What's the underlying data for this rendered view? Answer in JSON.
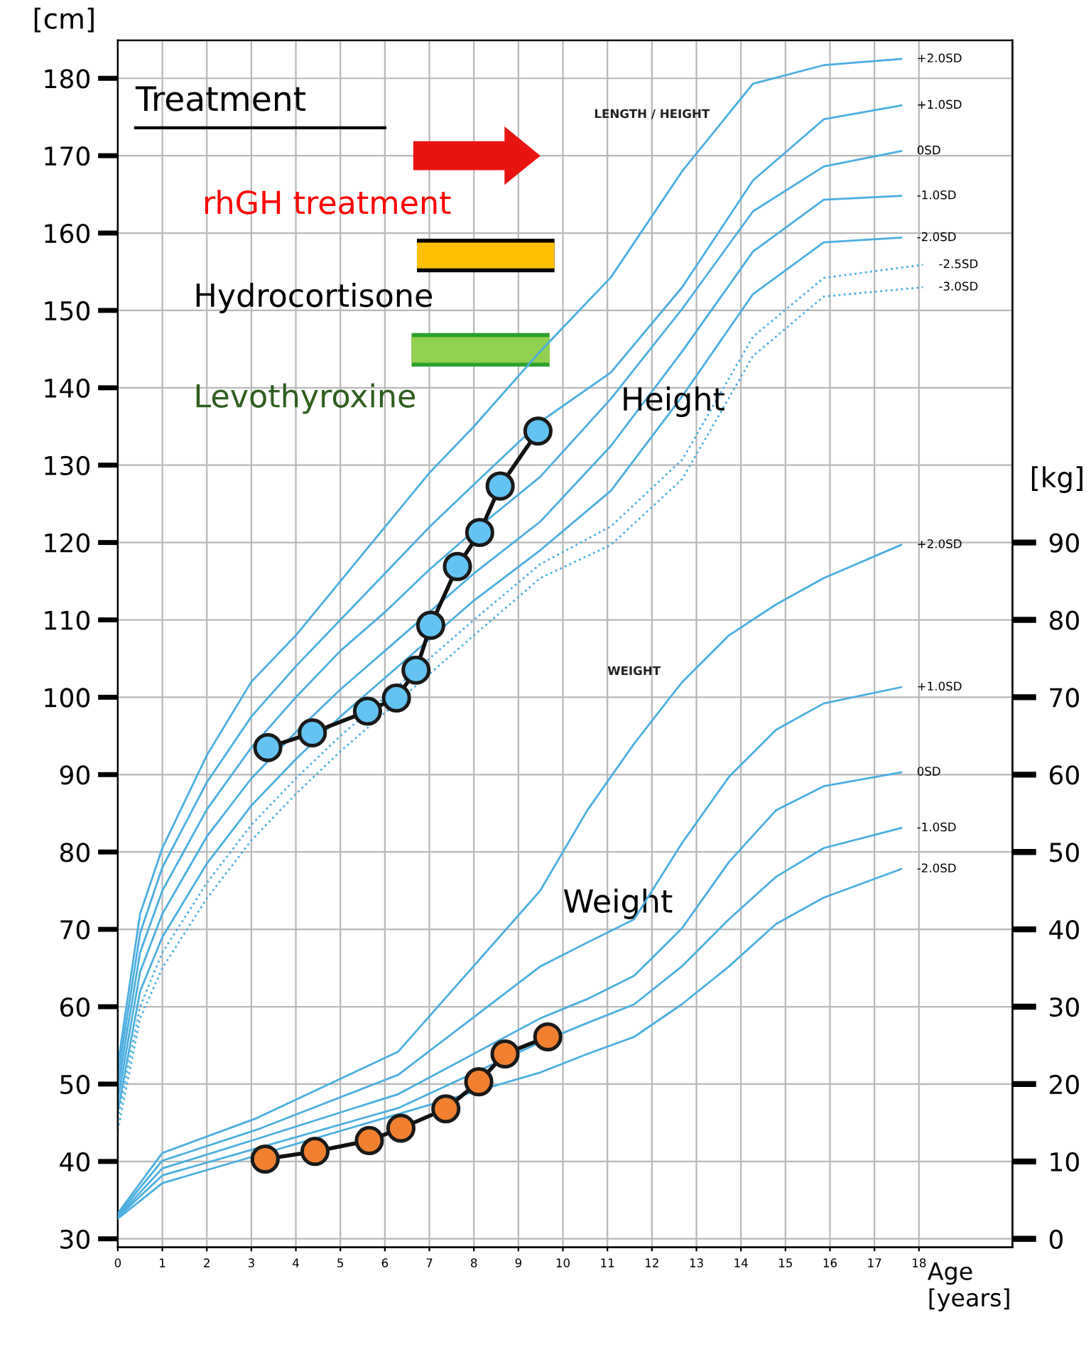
{
  "chart_data": {
    "type": "line",
    "xlabel": "Age\n[years]",
    "ylabel": "[cm]",
    "y2label": "[kg]",
    "xlim": [
      0,
      20.1
    ],
    "xticks": [
      0,
      1,
      2,
      3,
      4,
      5,
      6,
      7,
      8,
      9,
      10,
      11,
      12,
      13,
      14,
      15,
      16,
      17,
      18
    ],
    "ylim": [
      28.9,
      184.9
    ],
    "yticks": [
      30,
      40,
      50,
      60,
      70,
      80,
      90,
      100,
      110,
      120,
      130,
      140,
      150,
      160,
      170,
      180
    ],
    "y2lim": [
      -1.1,
      154.9
    ],
    "y2ticks": [
      0,
      10,
      20,
      30,
      40,
      50,
      60,
      70,
      80,
      90
    ],
    "grid": true,
    "legend": false,
    "annotations": [
      "Treatment",
      "rhGH treatment",
      "LENGTH / HEIGHT",
      "WEIGHT",
      "Height",
      "Weight"
    ],
    "series": [
      {
        "name": "+2.0SD",
        "color": "#4aaee0",
        "line_style": "solid",
        "marker": "none",
        "x": [
          0,
          0.5,
          1,
          2,
          3,
          4,
          5,
          6,
          7,
          8,
          9.49,
          11.08,
          12.68,
          14.27,
          15.86,
          17.6
        ],
        "values": [
          52.5,
          72,
          80.5,
          92.5,
          102,
          108,
          115,
          122,
          129,
          135,
          144.7,
          154.3,
          168,
          179.3,
          181.7,
          182.5
        ]
      },
      {
        "name": "+1.0SD",
        "color": "#4aaee0",
        "line_style": "solid",
        "marker": "none",
        "x": [
          0,
          0.5,
          1,
          2,
          3,
          4,
          5,
          6,
          7,
          8,
          9.49,
          11.08,
          12.68,
          14.27,
          15.86,
          17.6
        ],
        "values": [
          51,
          69.5,
          78,
          89,
          97.5,
          104,
          110,
          116,
          122,
          127.5,
          135.6,
          142,
          153,
          166.8,
          174.7,
          176.5
        ]
      },
      {
        "name": "0SD",
        "color": "#4aaee0",
        "line_style": "solid",
        "marker": "none",
        "x": [
          0,
          0.5,
          1,
          2,
          3,
          4,
          5,
          6,
          7,
          8,
          9.49,
          11.08,
          12.68,
          14.27,
          15.86,
          17.6
        ],
        "values": [
          49.5,
          67,
          75,
          85.5,
          93.5,
          100,
          106,
          111,
          116.5,
          121.5,
          128.5,
          138.6,
          150.2,
          162.8,
          168.6,
          170.6
        ]
      },
      {
        "name": "-1.0SD",
        "color": "#4aaee0",
        "line_style": "solid",
        "marker": "none",
        "x": [
          0,
          0.5,
          1,
          2,
          3,
          4,
          5,
          6,
          7,
          8,
          9.49,
          11.08,
          12.68,
          14.27,
          15.86,
          17.6
        ],
        "values": [
          48,
          64.5,
          72,
          82,
          89.5,
          95.5,
          101,
          106,
          111,
          116,
          122.7,
          132.5,
          144.7,
          157.6,
          164.3,
          164.8
        ]
      },
      {
        "name": "-2.0SD",
        "color": "#4aaee0",
        "line_style": "solid",
        "marker": "none",
        "x": [
          0,
          0.5,
          1,
          2,
          3,
          4,
          5,
          6,
          7,
          8,
          9.49,
          11.08,
          12.68,
          14.27,
          15.86,
          17.6
        ],
        "values": [
          46.5,
          62,
          69,
          78.5,
          86,
          92,
          97.5,
          102.5,
          107.5,
          112.5,
          119,
          126.7,
          138.9,
          152.1,
          158.8,
          159.4
        ]
      },
      {
        "name": "-2.5SD",
        "color": "#4aaee0",
        "line_style": "dotted",
        "marker": "none",
        "x": [
          0,
          0.5,
          1,
          2,
          3,
          4,
          5,
          6,
          7,
          8,
          9.49,
          11.08,
          12.68,
          14.27,
          15.86,
          18.09
        ],
        "values": [
          45.5,
          60,
          67,
          76,
          83.5,
          89.5,
          95,
          100,
          105,
          110,
          117.2,
          122.1,
          130.7,
          146.6,
          154.2,
          155.9
        ]
      },
      {
        "name": "-3.0SD",
        "color": "#4aaee0",
        "line_style": "dotted",
        "marker": "none",
        "x": [
          0,
          0.5,
          1,
          2,
          3,
          4,
          5,
          6,
          7,
          8,
          9.49,
          11.08,
          12.68,
          14.27,
          15.86,
          18.09
        ],
        "values": [
          44,
          58.5,
          65,
          74,
          81.5,
          87.5,
          93,
          98,
          103,
          108,
          115.4,
          119.7,
          128.2,
          144.1,
          151.8,
          153
        ]
      },
      {
        "name": "+2.0SD",
        "axis": "y2",
        "color": "#4aaee0",
        "line_style": "solid",
        "marker": "none",
        "x": [
          0,
          1,
          3.12,
          6.3,
          9.49,
          10.55,
          11.6,
          12.67,
          13.73,
          14.79,
          15.86,
          17.6
        ],
        "values": [
          3.3,
          11.1,
          15.6,
          24.2,
          45,
          55.4,
          64,
          71.9,
          78,
          82,
          85.4,
          89.7
        ]
      },
      {
        "name": "+1.0SD",
        "axis": "y2",
        "color": "#4aaee0",
        "line_style": "solid",
        "marker": "none",
        "x": [
          0,
          1,
          3.12,
          6.3,
          9.49,
          10.55,
          11.6,
          12.67,
          13.73,
          14.79,
          15.86,
          17.6
        ],
        "values": [
          3.1,
          10.1,
          14.1,
          21.2,
          35.2,
          38.3,
          41.3,
          51.1,
          59.7,
          65.8,
          69.2,
          71.3
        ]
      },
      {
        "name": "0SD",
        "axis": "y2",
        "color": "#4aaee0",
        "line_style": "solid",
        "marker": "none",
        "x": [
          0,
          1,
          3.12,
          6.3,
          9.49,
          10.55,
          11.6,
          12.67,
          13.73,
          14.79,
          15.86,
          17.6
        ],
        "values": [
          2.9,
          9.1,
          12.9,
          18.7,
          28.5,
          31,
          34,
          40.1,
          48.7,
          55.4,
          58.5,
          60.3
        ]
      },
      {
        "name": "-1.0SD",
        "axis": "y2",
        "color": "#4aaee0",
        "line_style": "solid",
        "marker": "none",
        "x": [
          0,
          1,
          3.12,
          6.3,
          9.49,
          10.55,
          11.6,
          12.67,
          13.73,
          14.79,
          15.86,
          17.6
        ],
        "values": [
          2.8,
          8.2,
          11.7,
          16.9,
          25.4,
          27.9,
          30.3,
          35.2,
          41.3,
          46.8,
          50.5,
          53.1
        ]
      },
      {
        "name": "-2.0SD",
        "axis": "y2",
        "color": "#4aaee0",
        "line_style": "solid",
        "marker": "none",
        "x": [
          0,
          1,
          9.49,
          10.55,
          11.6,
          12.67,
          13.73,
          14.79,
          15.86,
          17.6
        ],
        "values": [
          2.6,
          7.2,
          21.5,
          23.9,
          26.1,
          30.3,
          35.2,
          40.7,
          44.1,
          47.8
        ]
      },
      {
        "color": "#63c3f2",
        "line_style": "solid",
        "marker": "circle",
        "x": [
          3.37,
          4.37,
          5.61,
          6.26,
          6.7,
          7.03,
          7.63,
          8.13,
          8.59,
          9.44
        ],
        "values": [
          93.5,
          95.4,
          98.2,
          99.9,
          103.5,
          109.3,
          116.9,
          121.3,
          127.3,
          134.4
        ]
      },
      {
        "axis": "y2",
        "color": "#f08030",
        "line_style": "solid",
        "marker": "circle",
        "x": [
          3.31,
          4.43,
          5.65,
          6.36,
          7.37,
          8.11,
          8.7,
          9.66
        ],
        "values": [
          10.3,
          11.3,
          12.7,
          14.3,
          16.8,
          20.3,
          23.9,
          26.1
        ]
      },
      {
        "name": "Hydrocortisone",
        "color": "#ffc000",
        "line_style": "solid",
        "marker": "none",
        "x": [
          6.72,
          9.81
        ],
        "values": [
          157.1,
          157.1
        ]
      },
      {
        "name": "Levothyroxine",
        "color": "#92d050",
        "line_style": "solid",
        "marker": "none",
        "x": [
          6.6,
          9.7
        ],
        "values": [
          144.9,
          144.9
        ]
      }
    ]
  }
}
